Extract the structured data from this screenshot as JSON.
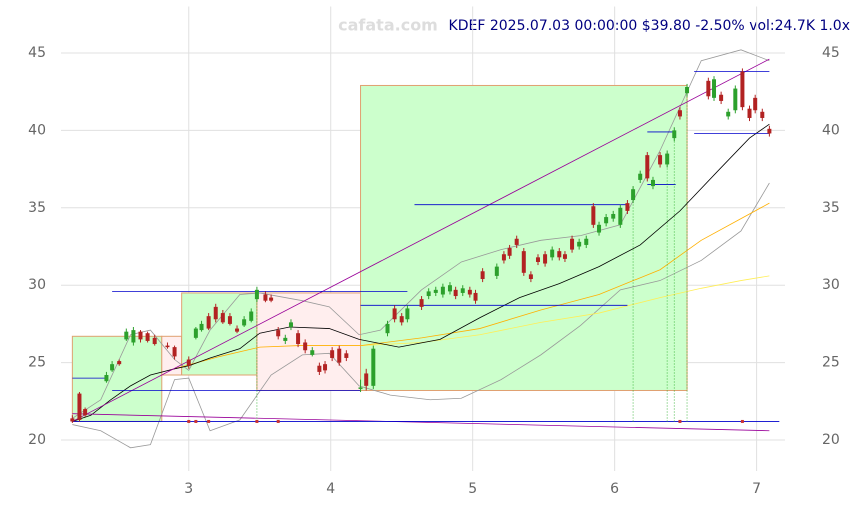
{
  "chart_data": {
    "type": "candlestick",
    "title": "KDEF 2025.07.03 00:00:00 $39.80 -2.50% vol:24.7K 1.0x",
    "watermark": "cafata.com",
    "xlim": [
      2.1,
      7.2
    ],
    "ylim": [
      18,
      48
    ],
    "xticks": [
      3,
      4,
      5,
      6,
      7
    ],
    "yticks": [
      20,
      25,
      30,
      35,
      40,
      45
    ],
    "grid": true,
    "up_color": "#2ca02c",
    "down_color": "#b22222",
    "candles": {
      "x": [
        2.18,
        2.23,
        2.27,
        2.42,
        2.46,
        2.51,
        2.56,
        2.61,
        2.66,
        2.71,
        2.76,
        2.85,
        2.9,
        3.0,
        3.05,
        3.09,
        3.14,
        3.19,
        3.24,
        3.29,
        3.34,
        3.39,
        3.44,
        3.48,
        3.54,
        3.58,
        3.63,
        3.68,
        3.72,
        3.77,
        3.82,
        3.87,
        3.92,
        3.96,
        4.01,
        4.06,
        4.11,
        4.21,
        4.25,
        4.3,
        4.4,
        4.45,
        4.5,
        4.54,
        4.64,
        4.69,
        4.74,
        4.79,
        4.84,
        4.88,
        4.93,
        4.98,
        5.02,
        5.07,
        5.17,
        5.22,
        5.26,
        5.31,
        5.36,
        5.41,
        5.46,
        5.51,
        5.56,
        5.61,
        5.65,
        5.7,
        5.75,
        5.8,
        5.85,
        5.89,
        5.94,
        5.99,
        6.04,
        6.09,
        6.13,
        6.18,
        6.23,
        6.27,
        6.32,
        6.37,
        6.42,
        6.46,
        6.51,
        6.66,
        6.7,
        6.75,
        6.8,
        6.85,
        6.9,
        6.95,
        6.99,
        7.04,
        7.09
      ],
      "open": [
        21.4,
        23.0,
        22.0,
        23.8,
        24.5,
        25.1,
        26.5,
        26.3,
        27.0,
        26.9,
        26.6,
        26.1,
        26.0,
        25.2,
        26.6,
        27.1,
        28.0,
        28.6,
        28.2,
        28.0,
        27.2,
        27.4,
        27.7,
        29.1,
        29.4,
        29.2,
        27.1,
        26.4,
        27.3,
        26.9,
        26.3,
        25.5,
        24.8,
        24.9,
        25.8,
        25.9,
        25.6,
        23.3,
        24.3,
        23.5,
        26.9,
        28.5,
        28.0,
        27.8,
        29.1,
        29.3,
        29.5,
        29.4,
        29.6,
        29.7,
        29.5,
        29.7,
        29.5,
        30.9,
        30.6,
        32.0,
        32.4,
        33.0,
        32.2,
        30.7,
        31.8,
        32.0,
        31.8,
        32.2,
        32.0,
        33.0,
        32.5,
        32.6,
        35.1,
        33.4,
        34.0,
        34.3,
        33.9,
        35.3,
        35.5,
        36.8,
        38.4,
        36.4,
        38.4,
        37.8,
        39.5,
        41.3,
        42.4,
        43.2,
        42.1,
        42.3,
        40.9,
        41.3,
        43.8,
        41.4,
        42.1,
        41.2,
        40.1
      ],
      "high": [
        21.6,
        23.1,
        22.1,
        24.4,
        25.1,
        25.2,
        27.2,
        27.3,
        27.1,
        27.0,
        26.8,
        26.3,
        26.1,
        25.4,
        27.3,
        27.7,
        28.2,
        28.8,
        28.4,
        28.2,
        27.4,
        28.0,
        28.5,
        29.9,
        29.6,
        29.4,
        27.3,
        26.8,
        27.8,
        27.1,
        26.5,
        26.0,
        25.0,
        25.1,
        26.0,
        26.1,
        25.8,
        23.9,
        24.6,
        26.1,
        27.7,
        28.7,
        28.2,
        28.7,
        29.3,
        29.8,
        29.9,
        30.1,
        30.2,
        29.9,
        30.0,
        29.9,
        29.7,
        31.1,
        31.4,
        32.2,
        32.6,
        33.2,
        32.4,
        30.9,
        32.0,
        32.2,
        32.5,
        32.4,
        32.2,
        33.2,
        33.0,
        33.2,
        35.3,
        34.1,
        34.6,
        34.8,
        35.2,
        35.5,
        36.4,
        37.4,
        38.6,
        37.0,
        38.6,
        38.7,
        40.2,
        41.5,
        43.0,
        43.4,
        43.5,
        42.5,
        41.4,
        42.9,
        44.0,
        41.6,
        42.3,
        41.4,
        40.3
      ],
      "low": [
        21.1,
        21.2,
        21.5,
        23.7,
        24.4,
        24.8,
        26.4,
        26.1,
        26.3,
        26.3,
        26.1,
        25.9,
        25.2,
        24.6,
        26.5,
        27.0,
        27.1,
        27.6,
        27.5,
        27.4,
        26.9,
        27.3,
        27.6,
        28.9,
        28.9,
        28.9,
        26.5,
        26.2,
        27.1,
        26.0,
        25.6,
        25.4,
        24.2,
        24.3,
        25.1,
        24.8,
        25.1,
        23.1,
        23.2,
        23.3,
        26.7,
        27.6,
        27.4,
        27.6,
        28.4,
        29.1,
        29.3,
        29.2,
        29.4,
        29.1,
        29.3,
        29.2,
        28.8,
        30.2,
        30.4,
        31.4,
        31.7,
        32.4,
        30.6,
        30.2,
        31.3,
        31.2,
        31.6,
        31.6,
        31.5,
        32.1,
        32.3,
        32.4,
        33.7,
        33.2,
        33.8,
        34.1,
        33.7,
        34.6,
        35.3,
        36.6,
        36.7,
        36.2,
        37.6,
        37.6,
        39.3,
        40.7,
        42.2,
        42.0,
        41.9,
        41.7,
        40.7,
        41.1,
        41.3,
        40.6,
        41.1,
        40.6,
        39.6
      ],
      "close": [
        21.2,
        21.3,
        21.6,
        24.2,
        24.9,
        24.9,
        27.0,
        27.1,
        26.5,
        26.4,
        26.2,
        26.0,
        25.4,
        24.8,
        27.2,
        27.5,
        27.2,
        27.8,
        27.6,
        27.5,
        27.0,
        27.8,
        28.3,
        29.7,
        29.0,
        29.0,
        26.7,
        26.6,
        27.6,
        26.2,
        25.8,
        25.8,
        24.4,
        24.5,
        25.3,
        25.0,
        25.3,
        23.4,
        23.5,
        25.9,
        27.5,
        27.8,
        27.6,
        28.5,
        28.6,
        29.6,
        29.7,
        29.9,
        30.0,
        29.3,
        29.8,
        29.4,
        29.0,
        30.4,
        31.2,
        31.6,
        31.9,
        32.6,
        30.8,
        30.4,
        31.5,
        31.4,
        32.3,
        31.8,
        31.7,
        32.3,
        32.8,
        33.0,
        33.9,
        33.9,
        34.4,
        34.6,
        35.0,
        34.8,
        36.2,
        37.2,
        36.9,
        36.8,
        37.8,
        38.5,
        40.0,
        40.9,
        42.8,
        42.2,
        43.3,
        41.9,
        41.2,
        42.7,
        41.5,
        40.8,
        41.3,
        40.8,
        39.8
      ]
    },
    "rects": [
      {
        "x": [
          2.18,
          2.81
        ],
        "y": [
          21.2,
          26.7
        ],
        "fill": "#ccffcc",
        "stroke": "#e0a070"
      },
      {
        "x": [
          2.81,
          2.95
        ],
        "y": [
          24.2,
          26.7
        ],
        "fill": "#ffeeee",
        "stroke": "#e0a070"
      },
      {
        "x": [
          2.95,
          3.48
        ],
        "y": [
          24.2,
          29.5
        ],
        "fill": "#ccffcc",
        "stroke": "#e0a070"
      },
      {
        "x": [
          3.48,
          4.21
        ],
        "y": [
          23.2,
          29.5
        ],
        "fill": "#ffeeee",
        "stroke": "#e0a070"
      },
      {
        "x": [
          4.21,
          6.51
        ],
        "y": [
          23.2,
          42.9
        ],
        "fill": "#ccffcc",
        "stroke": "#e0a070"
      }
    ],
    "lines": [
      {
        "color": "#999999",
        "x": [
          2.18,
          2.38,
          2.59,
          2.73,
          2.9,
          3.0,
          3.15,
          3.36,
          3.5,
          3.8,
          3.99,
          4.2,
          4.35,
          4.64,
          4.92,
          5.2,
          5.48,
          5.76,
          6.04,
          6.32,
          6.61,
          6.89,
          7.09
        ],
        "values": [
          21.4,
          22.6,
          26.8,
          27.1,
          25.2,
          24.5,
          27.1,
          29.4,
          29.5,
          29.0,
          28.6,
          26.8,
          27.1,
          29.7,
          31.5,
          32.3,
          32.9,
          33.2,
          33.9,
          38.7,
          44.5,
          45.2,
          44.5
        ]
      },
      {
        "color": "#999999",
        "x": [
          2.18,
          2.38,
          2.59,
          2.73,
          2.9,
          3.0,
          3.15,
          3.36,
          3.58,
          3.8,
          3.99,
          4.2,
          4.42,
          4.7,
          4.92,
          5.2,
          5.48,
          5.76,
          6.04,
          6.32,
          6.61,
          6.89,
          7.09
        ],
        "values": [
          21.0,
          20.6,
          19.5,
          19.7,
          23.9,
          24.0,
          20.6,
          21.3,
          24.2,
          25.5,
          25.6,
          23.5,
          22.9,
          22.6,
          22.7,
          23.9,
          25.5,
          27.4,
          29.7,
          30.3,
          31.6,
          33.5,
          36.6
        ]
      },
      {
        "color": "#ffee55",
        "x": [
          4.21,
          4.64,
          5.05,
          5.48,
          5.89,
          6.32,
          6.61,
          6.89,
          7.09
        ],
        "values": [
          26.1,
          26.3,
          26.8,
          27.6,
          28.2,
          29.2,
          29.8,
          30.3,
          30.6
        ]
      },
      {
        "color": "#ffb000",
        "x": [
          2.9,
          3.22,
          3.5,
          3.78,
          4.21,
          4.64,
          5.05,
          5.48,
          5.89,
          6.32,
          6.61,
          6.89,
          7.09
        ],
        "values": [
          24.6,
          25.4,
          26.0,
          26.1,
          26.1,
          26.6,
          27.2,
          28.4,
          29.4,
          31.0,
          32.9,
          34.3,
          35.3
        ]
      },
      {
        "color": "#000000",
        "x": [
          2.18,
          2.31,
          2.45,
          2.59,
          2.73,
          2.9,
          3.0,
          3.15,
          3.36,
          3.5,
          3.71,
          3.99,
          4.2,
          4.48,
          4.77,
          5.05,
          5.33,
          5.61,
          5.89,
          6.18,
          6.46,
          6.74,
          6.95,
          7.09
        ],
        "values": [
          21.2,
          21.6,
          22.6,
          23.5,
          24.2,
          24.6,
          24.8,
          25.3,
          25.9,
          26.9,
          27.3,
          27.2,
          26.5,
          26.0,
          26.5,
          27.9,
          29.2,
          30.1,
          31.2,
          32.6,
          34.8,
          37.5,
          39.5,
          40.4
        ]
      },
      {
        "color": "#990099",
        "x": [
          2.18,
          7.09
        ],
        "values": [
          21.2,
          44.6
        ]
      },
      {
        "color": "#990099",
        "x": [
          2.18,
          7.09
        ],
        "values": [
          21.7,
          20.6
        ]
      }
    ],
    "hlines": [
      {
        "color": "#0000cc",
        "y": 21.2,
        "x": [
          2.18,
          7.16
        ]
      },
      {
        "color": "#0000cc",
        "y": 24.0,
        "x": [
          2.18,
          2.42
        ]
      },
      {
        "color": "#0000cc",
        "y": 23.2,
        "x": [
          2.46,
          4.21
        ]
      },
      {
        "color": "#0000cc",
        "y": 29.6,
        "x": [
          2.46,
          4.54
        ]
      },
      {
        "color": "#0000cc",
        "y": 35.2,
        "x": [
          4.59,
          6.09
        ]
      },
      {
        "color": "#0000cc",
        "y": 28.7,
        "x": [
          4.21,
          6.09
        ]
      },
      {
        "color": "#0000cc",
        "y": 39.9,
        "x": [
          6.23,
          6.43
        ]
      },
      {
        "color": "#0000cc",
        "y": 36.5,
        "x": [
          6.23,
          6.43
        ]
      },
      {
        "color": "#0000cc",
        "y": 43.8,
        "x": [
          6.56,
          7.09
        ]
      },
      {
        "color": "#0000cc",
        "y": 39.8,
        "x": [
          6.56,
          7.09
        ]
      }
    ],
    "vlines": [
      {
        "color": "#22aa22",
        "x": 3.48,
        "y": [
          21.2,
          29.5
        ]
      },
      {
        "color": "#22aa22",
        "x": 6.13,
        "y": [
          21.2,
          36.2
        ]
      },
      {
        "color": "#22aa22",
        "x": 6.37,
        "y": [
          21.2,
          38.5
        ]
      },
      {
        "color": "#22aa22",
        "x": 6.42,
        "y": [
          21.2,
          40.0
        ]
      },
      {
        "color": "#22aa22",
        "x": 6.51,
        "y": [
          21.2,
          42.8
        ]
      }
    ],
    "markers": {
      "color": "#cc3333",
      "y": 21.2,
      "x": [
        3.0,
        3.05,
        3.14,
        3.48,
        3.63,
        6.46,
        6.9
      ]
    }
  }
}
